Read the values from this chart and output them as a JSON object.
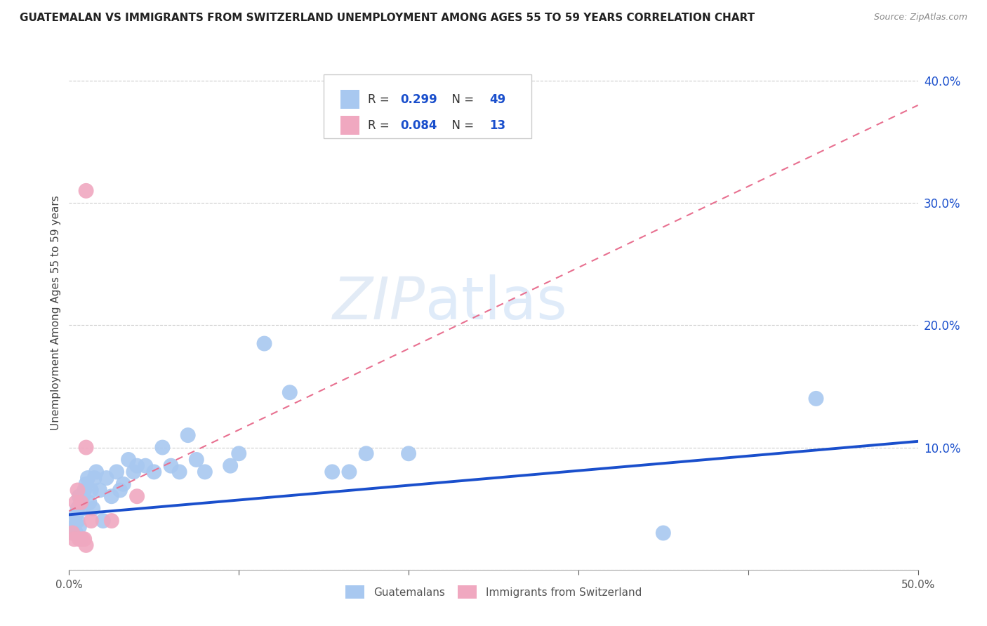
{
  "title": "GUATEMALAN VS IMMIGRANTS FROM SWITZERLAND UNEMPLOYMENT AMONG AGES 55 TO 59 YEARS CORRELATION CHART",
  "source": "Source: ZipAtlas.com",
  "ylabel": "Unemployment Among Ages 55 to 59 years",
  "xlim": [
    0,
    0.5
  ],
  "ylim": [
    0,
    0.42
  ],
  "xticks": [
    0.0,
    0.1,
    0.2,
    0.3,
    0.4,
    0.5
  ],
  "yticks": [
    0.0,
    0.1,
    0.2,
    0.3,
    0.4
  ],
  "guatemalan_color": "#a8c8f0",
  "swiss_color": "#f0a8c0",
  "trend_blue_color": "#1a4fcc",
  "trend_pink_color": "#e87090",
  "watermark_zip": "ZIP",
  "watermark_atlas": "atlas",
  "guatemalan_x": [
    0.002,
    0.003,
    0.003,
    0.004,
    0.004,
    0.005,
    0.005,
    0.006,
    0.006,
    0.007,
    0.007,
    0.008,
    0.008,
    0.009,
    0.01,
    0.011,
    0.012,
    0.013,
    0.014,
    0.015,
    0.016,
    0.018,
    0.02,
    0.022,
    0.025,
    0.028,
    0.03,
    0.032,
    0.035,
    0.038,
    0.04,
    0.045,
    0.05,
    0.055,
    0.06,
    0.065,
    0.07,
    0.075,
    0.08,
    0.095,
    0.1,
    0.115,
    0.13,
    0.155,
    0.165,
    0.175,
    0.2,
    0.35,
    0.44
  ],
  "guatemalan_y": [
    0.03,
    0.035,
    0.04,
    0.045,
    0.03,
    0.05,
    0.04,
    0.06,
    0.035,
    0.025,
    0.055,
    0.06,
    0.05,
    0.065,
    0.07,
    0.075,
    0.055,
    0.065,
    0.05,
    0.075,
    0.08,
    0.065,
    0.04,
    0.075,
    0.06,
    0.08,
    0.065,
    0.07,
    0.09,
    0.08,
    0.085,
    0.085,
    0.08,
    0.1,
    0.085,
    0.08,
    0.11,
    0.09,
    0.08,
    0.085,
    0.095,
    0.185,
    0.145,
    0.08,
    0.08,
    0.095,
    0.095,
    0.03,
    0.14
  ],
  "swiss_x": [
    0.002,
    0.003,
    0.004,
    0.005,
    0.006,
    0.007,
    0.008,
    0.009,
    0.01,
    0.013,
    0.025,
    0.04,
    0.01
  ],
  "swiss_y": [
    0.03,
    0.025,
    0.055,
    0.065,
    0.025,
    0.055,
    0.025,
    0.025,
    0.02,
    0.04,
    0.04,
    0.06,
    0.1
  ],
  "swiss_outlier_x": [
    0.01
  ],
  "swiss_outlier_y": [
    0.31
  ],
  "blue_trend_x": [
    0.0,
    0.5
  ],
  "blue_trend_y": [
    0.045,
    0.105
  ],
  "pink_trend_x": [
    0.0,
    0.5
  ],
  "pink_trend_y": [
    0.048,
    0.38
  ]
}
